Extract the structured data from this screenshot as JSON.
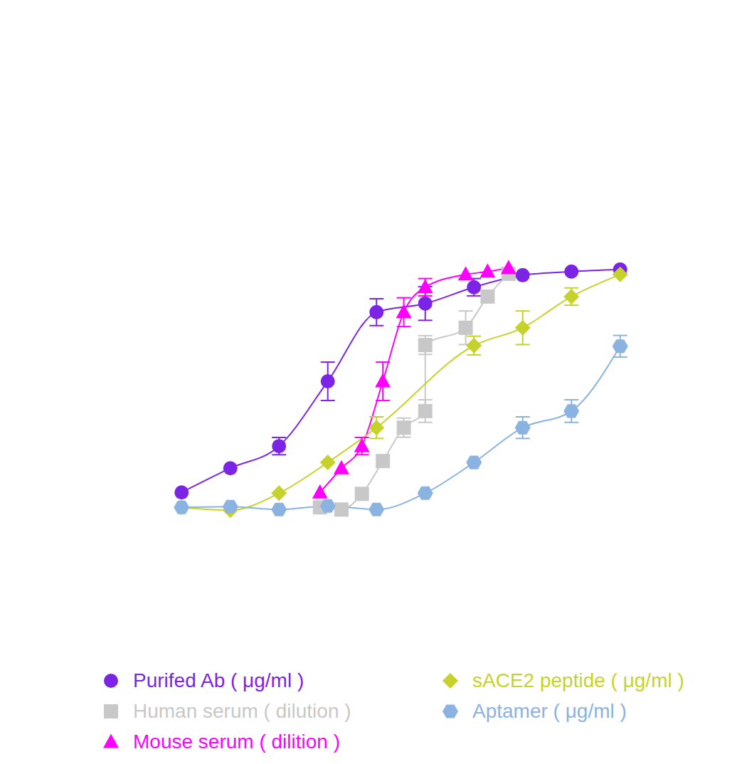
{
  "chart_data": {
    "type": "scatter",
    "tick_labels": false,
    "xlim": [
      0.5,
      10.5
    ],
    "ylim": [
      -10,
      110
    ],
    "xticks": [],
    "yticks": [],
    "grid": false,
    "series": [
      {
        "name": "Purifed Ab ( μg/ml )",
        "color": "#7b24e6",
        "marker": "circle",
        "line_style": "solid",
        "x": [
          1,
          2,
          3,
          4,
          5,
          6,
          7,
          8,
          9,
          10
        ],
        "values": [
          6.8,
          16.9,
          26.1,
          53.1,
          81.9,
          85.5,
          92.3,
          97.3,
          98.8,
          99.7
        ],
        "errors": [
          null,
          null,
          3.6,
          8,
          5.6,
          7,
          3.6,
          null,
          null,
          null
        ]
      },
      {
        "name": "Human serum ( dilution )",
        "color": "#c8c8c8",
        "marker": "square",
        "line_style": "solid",
        "x": [
          3.84,
          4.28,
          4.7,
          5.13,
          5.56,
          6.0,
          6.0,
          6.83,
          7.28,
          7.71
        ],
        "values": [
          0.6,
          -0.3,
          6.2,
          19.9,
          33.8,
          40.7,
          68.2,
          75.4,
          88.4,
          97.9
        ],
        "errors": [
          null,
          null,
          null,
          null,
          4,
          4.7,
          3.9,
          7,
          null,
          null
        ]
      },
      {
        "name": "Mouse serum ( dilition )",
        "color": "#ff00ff",
        "marker": "triangle",
        "line_style": "solid",
        "x": [
          3.84,
          4.28,
          4.7,
          5.13,
          5.56,
          6.0,
          6.83,
          7.28,
          7.71
        ],
        "values": [
          6.8,
          16.9,
          26.1,
          53.1,
          81.9,
          92.3,
          97.6,
          98.8,
          100.3
        ],
        "errors": [
          null,
          null,
          3.6,
          8,
          6,
          3.6,
          null,
          null,
          null
        ]
      },
      {
        "name": "sACE2 peptide ( μg/ml )",
        "color": "#c6d22c",
        "marker": "diamond",
        "line_style": "solid",
        "x": [
          1,
          2,
          3,
          4,
          5,
          7,
          8,
          9,
          10
        ],
        "values": [
          0.6,
          -0.6,
          6.5,
          19.3,
          33.8,
          68,
          75.4,
          88.4,
          97.6
        ],
        "errors": [
          null,
          null,
          null,
          null,
          4.5,
          3.9,
          7,
          3.6,
          null
        ]
      },
      {
        "name": "Aptamer ( μg/ml )",
        "color": "#8ab3e2",
        "marker": "hexagon",
        "line_style": "solid",
        "x": [
          1,
          2,
          3,
          4,
          5,
          6,
          7,
          8,
          9,
          10
        ],
        "values": [
          0.6,
          0.9,
          -0.3,
          1.2,
          -0.3,
          6.5,
          19.3,
          33.8,
          40.7,
          67.7
        ],
        "errors": [
          null,
          null,
          null,
          null,
          null,
          null,
          null,
          4.5,
          4.7,
          4.5
        ]
      }
    ]
  }
}
